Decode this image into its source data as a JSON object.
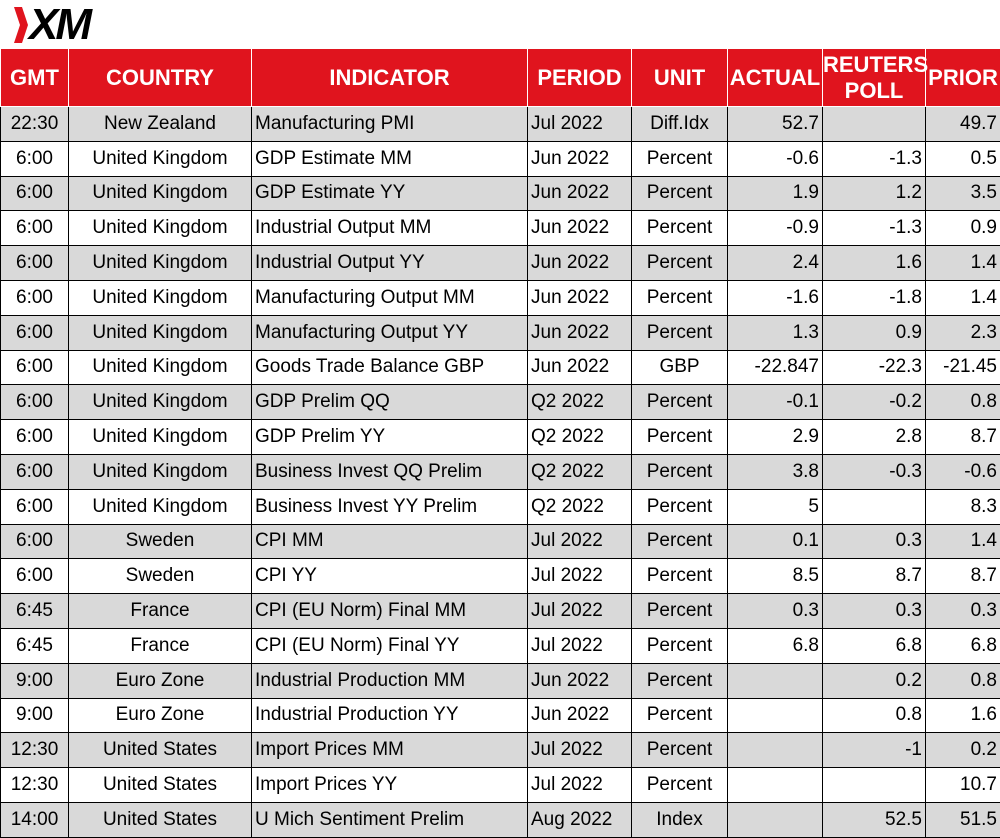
{
  "brand": {
    "logo_text": "XM",
    "accent": "#e0141e"
  },
  "table": {
    "headers": {
      "gmt": "GMT",
      "country": "COUNTRY",
      "indicator": "INDICATOR",
      "period": "PERIOD",
      "unit": "UNIT",
      "actual": "ACTUAL",
      "poll_line1": "REUTERS",
      "poll_line2": "POLL",
      "prior": "PRIOR"
    },
    "rows": [
      {
        "gmt": "22:30",
        "country": "New Zealand",
        "indicator": "Manufacturing PMI",
        "period": "Jul 2022",
        "unit": "Diff.Idx",
        "actual": "52.7",
        "poll": "",
        "prior": "49.7"
      },
      {
        "gmt": "6:00",
        "country": "United Kingdom",
        "indicator": "GDP Estimate MM",
        "period": "Jun 2022",
        "unit": "Percent",
        "actual": "-0.6",
        "poll": "-1.3",
        "prior": "0.5"
      },
      {
        "gmt": "6:00",
        "country": "United Kingdom",
        "indicator": "GDP Estimate YY",
        "period": "Jun 2022",
        "unit": "Percent",
        "actual": "1.9",
        "poll": "1.2",
        "prior": "3.5"
      },
      {
        "gmt": "6:00",
        "country": "United Kingdom",
        "indicator": "Industrial Output MM",
        "period": "Jun 2022",
        "unit": "Percent",
        "actual": "-0.9",
        "poll": "-1.3",
        "prior": "0.9"
      },
      {
        "gmt": "6:00",
        "country": "United Kingdom",
        "indicator": "Industrial Output YY",
        "period": "Jun 2022",
        "unit": "Percent",
        "actual": "2.4",
        "poll": "1.6",
        "prior": "1.4"
      },
      {
        "gmt": "6:00",
        "country": "United Kingdom",
        "indicator": "Manufacturing Output MM",
        "period": "Jun 2022",
        "unit": "Percent",
        "actual": "-1.6",
        "poll": "-1.8",
        "prior": "1.4"
      },
      {
        "gmt": "6:00",
        "country": "United Kingdom",
        "indicator": "Manufacturing Output YY",
        "period": "Jun 2022",
        "unit": "Percent",
        "actual": "1.3",
        "poll": "0.9",
        "prior": "2.3"
      },
      {
        "gmt": "6:00",
        "country": "United Kingdom",
        "indicator": "Goods Trade Balance GBP",
        "period": "Jun 2022",
        "unit": "GBP",
        "actual": "-22.847",
        "poll": "-22.3",
        "prior": "-21.45"
      },
      {
        "gmt": "6:00",
        "country": "United Kingdom",
        "indicator": "GDP Prelim QQ",
        "period": "Q2 2022",
        "unit": "Percent",
        "actual": "-0.1",
        "poll": "-0.2",
        "prior": "0.8"
      },
      {
        "gmt": "6:00",
        "country": "United Kingdom",
        "indicator": "GDP Prelim YY",
        "period": "Q2 2022",
        "unit": "Percent",
        "actual": "2.9",
        "poll": "2.8",
        "prior": "8.7"
      },
      {
        "gmt": "6:00",
        "country": "United Kingdom",
        "indicator": "Business Invest QQ Prelim",
        "period": "Q2 2022",
        "unit": "Percent",
        "actual": "3.8",
        "poll": "-0.3",
        "prior": "-0.6"
      },
      {
        "gmt": "6:00",
        "country": "United Kingdom",
        "indicator": "Business Invest YY Prelim",
        "period": "Q2 2022",
        "unit": "Percent",
        "actual": "5",
        "poll": "",
        "prior": "8.3"
      },
      {
        "gmt": "6:00",
        "country": "Sweden",
        "indicator": "CPI MM",
        "period": "Jul 2022",
        "unit": "Percent",
        "actual": "0.1",
        "poll": "0.3",
        "prior": "1.4"
      },
      {
        "gmt": "6:00",
        "country": "Sweden",
        "indicator": "CPI YY",
        "period": "Jul 2022",
        "unit": "Percent",
        "actual": "8.5",
        "poll": "8.7",
        "prior": "8.7"
      },
      {
        "gmt": "6:45",
        "country": "France",
        "indicator": "CPI (EU Norm) Final MM",
        "period": "Jul 2022",
        "unit": "Percent",
        "actual": "0.3",
        "poll": "0.3",
        "prior": "0.3"
      },
      {
        "gmt": "6:45",
        "country": "France",
        "indicator": "CPI (EU Norm) Final YY",
        "period": "Jul 2022",
        "unit": "Percent",
        "actual": "6.8",
        "poll": "6.8",
        "prior": "6.8"
      },
      {
        "gmt": "9:00",
        "country": "Euro Zone",
        "indicator": "Industrial Production MM",
        "period": "Jun 2022",
        "unit": "Percent",
        "actual": "",
        "poll": "0.2",
        "prior": "0.8"
      },
      {
        "gmt": "9:00",
        "country": "Euro Zone",
        "indicator": "Industrial Production YY",
        "period": "Jun 2022",
        "unit": "Percent",
        "actual": "",
        "poll": "0.8",
        "prior": "1.6"
      },
      {
        "gmt": "12:30",
        "country": "United States",
        "indicator": "Import Prices MM",
        "period": "Jul 2022",
        "unit": "Percent",
        "actual": "",
        "poll": "-1",
        "prior": "0.2"
      },
      {
        "gmt": "12:30",
        "country": "United States",
        "indicator": "Import Prices YY",
        "period": "Jul 2022",
        "unit": "Percent",
        "actual": "",
        "poll": "",
        "prior": "10.7"
      },
      {
        "gmt": "14:00",
        "country": "United States",
        "indicator": "U Mich Sentiment Prelim",
        "period": "Aug 2022",
        "unit": "Index",
        "actual": "",
        "poll": "52.5",
        "prior": "51.5"
      }
    ]
  }
}
